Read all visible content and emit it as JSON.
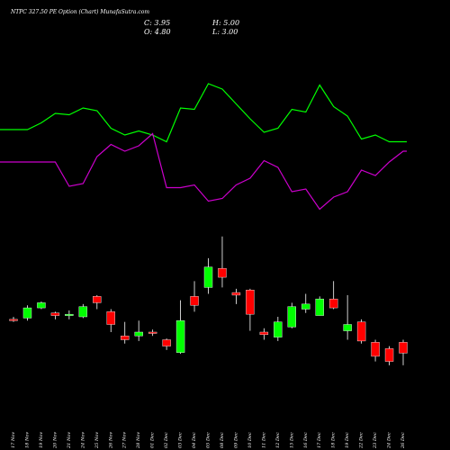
{
  "header": {
    "title": "NTPC 327.50 PE Option (Chart) MunafaSutra.com",
    "close": "C: 3.95",
    "high": "H: 5.00",
    "open": "O: 4.80",
    "low": "L: 3.00"
  },
  "colors": {
    "background": "#000000",
    "up": "#00ff00",
    "down": "#ff0000",
    "line_upper": "#00ff00",
    "line_lower": "#cc00cc"
  },
  "chart_data": [
    {
      "type": "candlestick",
      "title": "NTPC 327.50 PE Option (Chart) MunafaSutra.com",
      "categories": [
        "17 Nov",
        "18 Nov",
        "19 Nov",
        "20 Nov",
        "21 Nov",
        "24 Nov",
        "25 Nov",
        "26 Nov",
        "27 Nov",
        "28 Nov",
        "01 Dec",
        "02 Dec",
        "03 Dec",
        "04 Dec",
        "05 Dec",
        "08 Dec",
        "09 Dec",
        "10 Dec",
        "11 Dec",
        "12 Dec",
        "15 Dec",
        "16 Dec",
        "17 Dec",
        "18 Dec",
        "19 Dec",
        "22 Dec",
        "23 Dec",
        "24 Dec",
        "26 Dec"
      ],
      "series": [
        {
          "open": [
            6.6,
            6.7,
            7.5,
            7.1,
            6.9,
            6.8,
            8.4,
            7.2,
            5.3,
            5.3,
            5.6,
            5.0,
            4.0,
            8.4,
            9.1,
            10.6,
            8.7,
            8.9,
            5.6,
            5.2,
            6.0,
            7.4,
            6.9,
            8.2,
            5.7,
            6.4,
            4.8,
            4.3,
            4.8
          ],
          "close": [
            6.5,
            7.5,
            7.9,
            6.9,
            7.0,
            7.6,
            7.9,
            6.2,
            5.0,
            5.6,
            5.5,
            4.5,
            6.5,
            7.7,
            10.7,
            9.9,
            8.5,
            7.0,
            5.4,
            6.4,
            7.6,
            7.8,
            8.2,
            7.5,
            6.2,
            4.9,
            3.7,
            3.3,
            3.95
          ],
          "high": [
            6.8,
            7.7,
            8.0,
            7.2,
            7.3,
            7.8,
            8.5,
            7.4,
            6.4,
            6.5,
            5.8,
            5.1,
            8.1,
            9.6,
            11.4,
            13.1,
            9.0,
            9.0,
            5.9,
            6.8,
            7.9,
            8.6,
            8.4,
            9.6,
            8.5,
            6.6,
            5.0,
            4.5,
            5.0
          ],
          "low": [
            6.4,
            6.5,
            7.4,
            6.6,
            6.6,
            6.7,
            7.4,
            5.6,
            4.7,
            4.9,
            5.3,
            4.2,
            3.9,
            7.2,
            8.6,
            9.1,
            7.8,
            5.7,
            5.0,
            4.9,
            5.9,
            7.1,
            6.9,
            7.4,
            5.0,
            4.7,
            3.3,
            3.0,
            3.0
          ]
        }
      ],
      "ylim": [
        2.0,
        14.0
      ]
    },
    {
      "type": "line",
      "categories": [
        "17 Nov",
        "18 Nov",
        "19 Nov",
        "20 Nov",
        "21 Nov",
        "24 Nov",
        "25 Nov",
        "26 Nov",
        "27 Nov",
        "28 Nov",
        "01 Dec",
        "02 Dec",
        "03 Dec",
        "04 Dec",
        "05 Dec",
        "08 Dec",
        "09 Dec",
        "10 Dec",
        "11 Dec",
        "12 Dec",
        "15 Dec",
        "16 Dec",
        "17 Dec",
        "18 Dec",
        "19 Dec",
        "22 Dec",
        "23 Dec",
        "24 Dec",
        "26 Dec"
      ],
      "series": [
        {
          "values": [
            64,
            64,
            69,
            76,
            75,
            80,
            78,
            65,
            60,
            63,
            60,
            55,
            80,
            79,
            98,
            94,
            83,
            72,
            62,
            65,
            79,
            77,
            97,
            81,
            74,
            57,
            60,
            55,
            55
          ]
        },
        {
          "values": [
            40,
            40,
            40,
            40,
            22,
            24,
            44,
            53,
            48,
            52,
            61,
            21,
            21,
            23,
            11,
            13,
            23,
            28,
            41,
            36,
            18,
            20,
            5,
            14,
            18,
            34,
            30,
            40,
            48
          ]
        }
      ],
      "ylim": [
        0,
        100
      ]
    }
  ]
}
